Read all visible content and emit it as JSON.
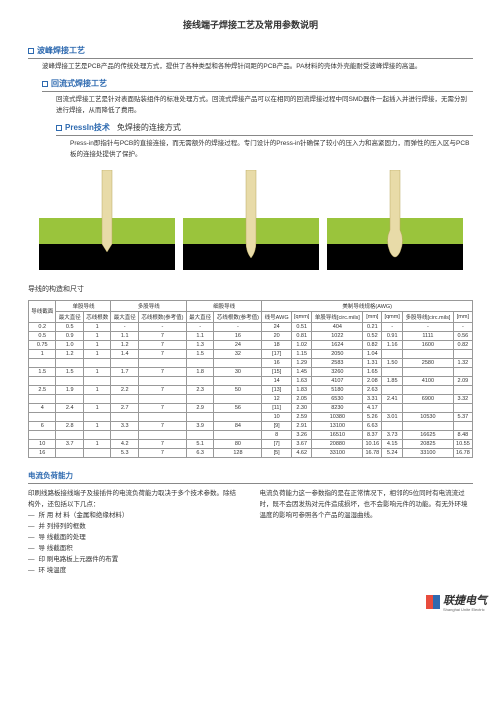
{
  "title": "接线端子焊接工艺及常用参数说明",
  "s1": {
    "head": "波峰焊接工艺",
    "body": "波峰焊接工艺是PCB产品的传统处理方式，提供了各种类型和各种焊针间距的PCB产品。PA材料的壳体外壳能耐受波峰焊接的高温。"
  },
  "s2": {
    "head": "回流式焊接工艺",
    "body": "回流式焊接工艺是针对表面贴装组件的标准处理方式。回流式焊接产品可以在相同的回流焊接过程中同SMD器件一起插入并进行焊接，无需分别进行焊接，从而降低了费用。"
  },
  "s3": {
    "head": "PressIn技术",
    "head2": "免焊接的连接方式",
    "body": "Press-in即指针与PCB的直接连接，而无需额外的焊接过程。专门设计的Press-in针确保了较小的压入力和高紧固力，而弹性的压入区与PCB板的连接处提供了保护。"
  },
  "diagram": {
    "bg_top": "#ffffff",
    "bg_band": "#9ac43c",
    "bg_bottom": "#000000",
    "pin_color": "#e8dba8",
    "pin_shadow": "#b8a860"
  },
  "tableTitle": "导线的构造和尺寸",
  "headers": {
    "g1": "导线截面",
    "g2": "单股导线",
    "g3": "多股导线",
    "g4": "细股导线",
    "g5": "美制导线规格(AWG)",
    "c1": "最大直径",
    "c2": "芯线根数",
    "c3": "最大直径",
    "c4": "芯线根数(参考值)",
    "c5": "最大直径",
    "c6": "芯线根数(参考值)",
    "c7": "线号AWG",
    "c8": "[qmm]",
    "c9": "单股导线[circ.mils]",
    "c10": "[mm]",
    "c11": "[qmm]",
    "c12": "多股导线[circ.mils]",
    "c13": "[mm]"
  },
  "rows": [
    [
      "0.2",
      "0.5",
      "1",
      "-",
      "-",
      "-",
      "-",
      "24",
      "0.51",
      "404",
      "0.21",
      "-",
      "-",
      "-"
    ],
    [
      "0.5",
      "0.9",
      "1",
      "1.1",
      "7",
      "1.1",
      "16",
      "20",
      "0.81",
      "1022",
      "0.52",
      "0.91",
      "1111",
      "0.56"
    ],
    [
      "0.75",
      "1.0",
      "1",
      "1.2",
      "7",
      "1.3",
      "24",
      "18",
      "1.02",
      "1624",
      "0.82",
      "1.16",
      "1600",
      "0.82"
    ],
    [
      "1",
      "1.2",
      "1",
      "1.4",
      "7",
      "1.5",
      "32",
      "[17]",
      "1.15",
      "2050",
      "1.04",
      "",
      "",
      ""
    ],
    [
      "",
      "",
      "",
      "",
      "",
      "",
      "",
      "16",
      "1.29",
      "2583",
      "1.31",
      "1.50",
      "2580",
      "1.32"
    ],
    [
      "1.5",
      "1.5",
      "1",
      "1.7",
      "7",
      "1.8",
      "30",
      "[15]",
      "1.45",
      "3260",
      "1.65",
      "",
      "",
      ""
    ],
    [
      "",
      "",
      "",
      "",
      "",
      "",
      "",
      "14",
      "1.63",
      "4107",
      "2.08",
      "1.85",
      "4100",
      "2.09"
    ],
    [
      "2.5",
      "1.9",
      "1",
      "2.2",
      "7",
      "2.3",
      "50",
      "[13]",
      "1.83",
      "5180",
      "2.63",
      "",
      "",
      ""
    ],
    [
      "",
      "",
      "",
      "",
      "",
      "",
      "",
      "12",
      "2.05",
      "6530",
      "3.31",
      "2.41",
      "6900",
      "3.32"
    ],
    [
      "4",
      "2.4",
      "1",
      "2.7",
      "7",
      "2.9",
      "56",
      "[11]",
      "2.30",
      "8230",
      "4.17",
      "",
      "",
      ""
    ],
    [
      "",
      "",
      "",
      "",
      "",
      "",
      "",
      "10",
      "2.59",
      "10380",
      "5.26",
      "3.01",
      "10530",
      "5.37"
    ],
    [
      "6",
      "2.8",
      "1",
      "3.3",
      "7",
      "3.9",
      "84",
      "[9]",
      "2.91",
      "13100",
      "6.63",
      "",
      "",
      ""
    ],
    [
      "",
      "",
      "",
      "",
      "",
      "",
      "",
      "8",
      "3.26",
      "16510",
      "8.37",
      "3.73",
      "16625",
      "8.48"
    ],
    [
      "10",
      "3.7",
      "1",
      "4.2",
      "7",
      "5.1",
      "80",
      "[7]",
      "3.67",
      "20880",
      "10.16",
      "4.15",
      "20825",
      "10.55"
    ],
    [
      "16",
      "",
      "",
      "5.3",
      "7",
      "6.3",
      "128",
      "[5]",
      "4.62",
      "33100",
      "16.78",
      "5.24",
      "33100",
      "16.78"
    ]
  ],
  "s4": {
    "head": "电流负荷能力"
  },
  "colL": {
    "p1": "印刷线路板接线端子及接插件的电流负荷能力取决于多个技术参数。除结构外，还包括以下几点：",
    "b1": "所 用 材 料（金属和绝缘材料）",
    "b2": "并 列排列的框数",
    "b3": "导 线截面的处理",
    "b4": "导 线截面积",
    "b5": "印 刷电路板上元器件的布置",
    "b6": "环 境温度"
  },
  "colR": {
    "p1": "电流负荷能力这一参数指的是在正常情况下，相邻的5位同时有电流流过时，既不会因发热对元件造成损坏，也不会影响元件的功能。有无外环境温度的影响可参照各个产品的温湿曲线。"
  },
  "logo": {
    "text": "联捷电气",
    "sub": "Shanghai Unite Electric",
    "c1": "#e84c3d",
    "c2": "#2e6ab0"
  }
}
